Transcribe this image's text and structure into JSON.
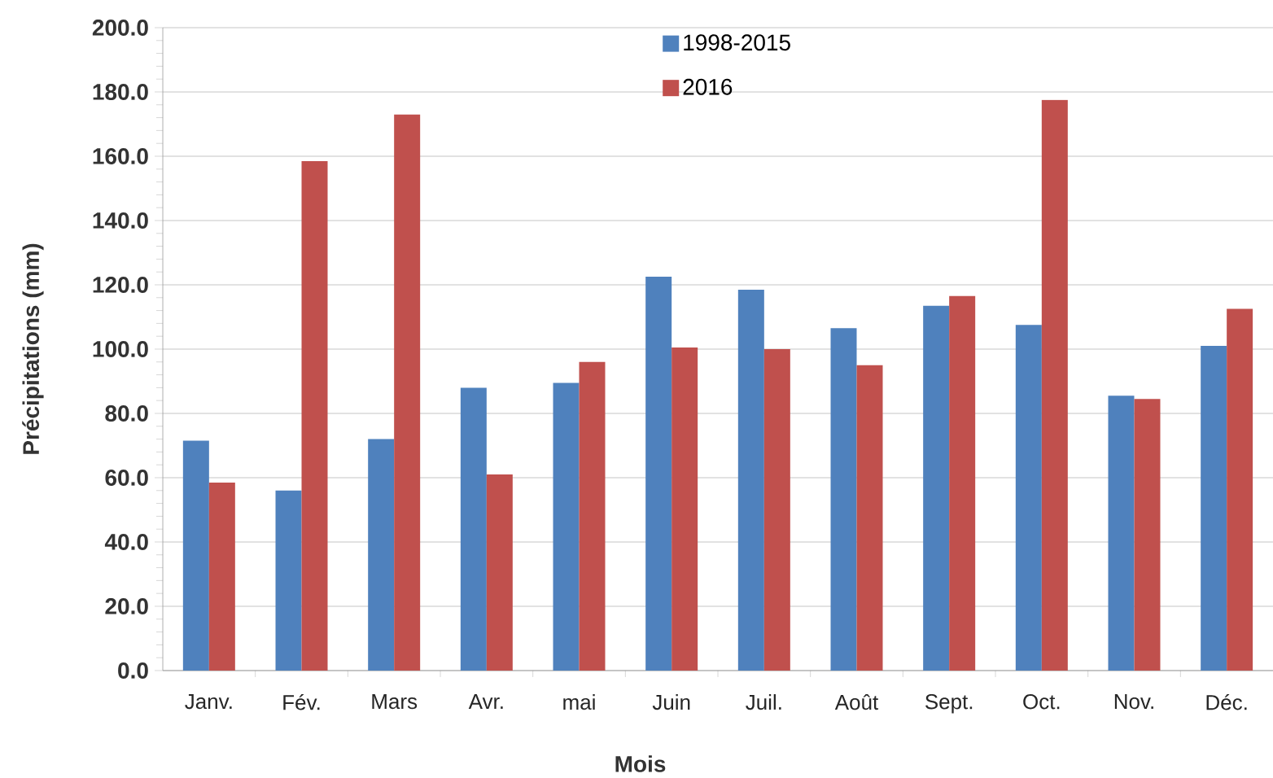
{
  "chart_data": {
    "type": "bar",
    "xlabel": "Mois",
    "ylabel": "Précipitations (mm)",
    "categories": [
      "Janv.",
      "Fév.",
      "Mars",
      "Avr.",
      "mai",
      "Juin",
      "Juil.",
      "Août",
      "Sept.",
      "Oct.",
      "Nov.",
      "Déc."
    ],
    "series": [
      {
        "name": "1998-2015",
        "color": "#4f81bd",
        "values": [
          71.5,
          56,
          72,
          88,
          89.5,
          122.5,
          118.5,
          106.5,
          113.5,
          107.5,
          85.5,
          101
        ]
      },
      {
        "name": "2016",
        "color": "#c0504d",
        "values": [
          58.5,
          158.5,
          173,
          61,
          96,
          100.5,
          100,
          95,
          116.5,
          177.5,
          84.5,
          112.5
        ]
      }
    ],
    "ylim": [
      0,
      200
    ],
    "yticks": [
      {
        "value": 0,
        "label": "0.0"
      },
      {
        "value": 20,
        "label": "20.0"
      },
      {
        "value": 40,
        "label": "40.0"
      },
      {
        "value": 60,
        "label": "60.0"
      },
      {
        "value": 80,
        "label": "80.0"
      },
      {
        "value": 100,
        "label": "100.0"
      },
      {
        "value": 120,
        "label": "120.0"
      },
      {
        "value": 140,
        "label": "140.0"
      },
      {
        "value": 160,
        "label": "160.0"
      },
      {
        "value": 180,
        "label": "180.0"
      },
      {
        "value": 200,
        "label": "200.0"
      }
    ],
    "grid": "y",
    "legend": "top"
  }
}
